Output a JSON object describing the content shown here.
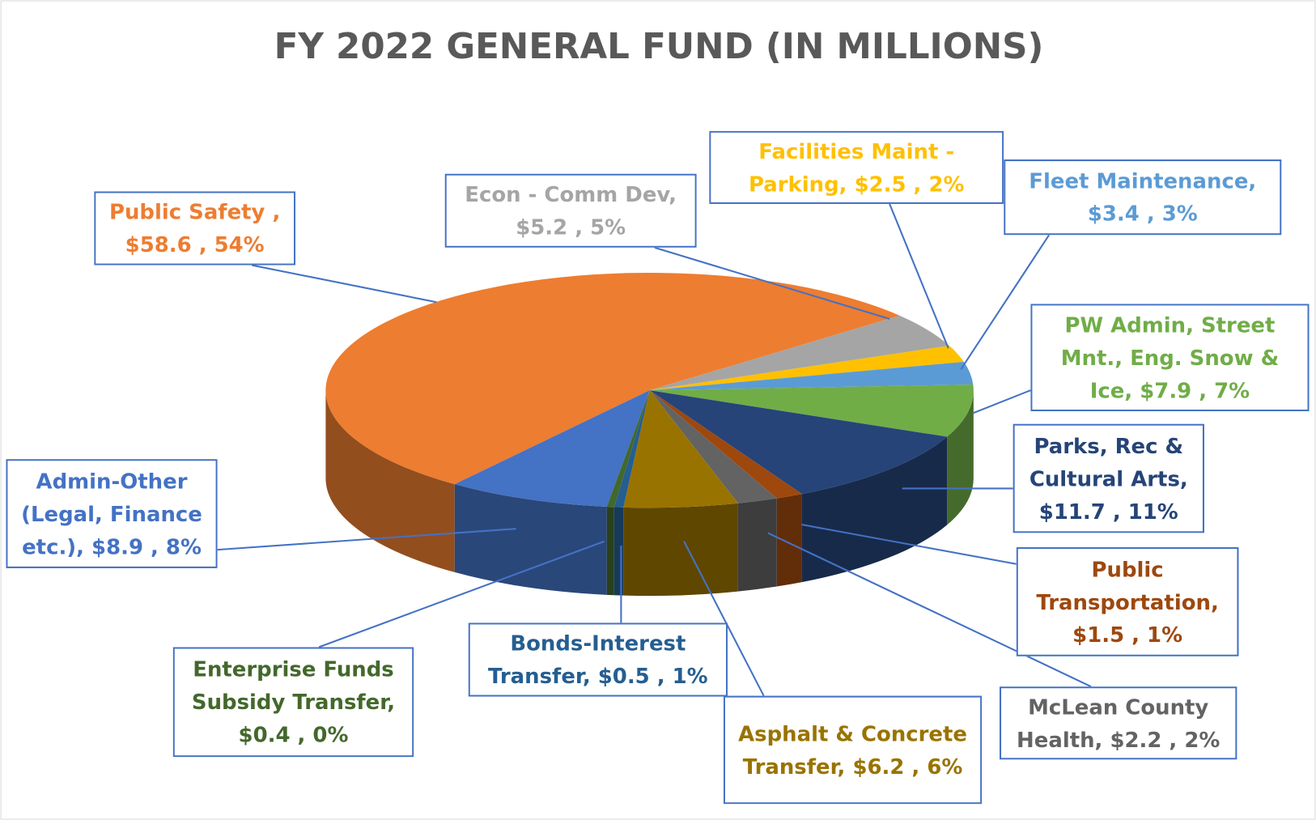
{
  "chart_data": {
    "type": "pie3d",
    "title": "FY 2022 GENERAL FUND (IN MILLIONS)",
    "categories": [
      "Public Safety ,",
      "Econ - Comm Dev,",
      "Facilities Maint - Parking,",
      "Fleet Maintenance,",
      "PW Admin, Street Mnt., Eng. Snow & Ice,",
      "Parks, Rec & Cultural Arts,",
      "Public Transportation,",
      "McLean County Health,",
      "Asphalt & Concrete Transfer,",
      "Bonds-Interest Transfer,",
      "Enterprise Funds Subsidy Transfer,",
      "Admin-Other (Legal, Finance etc.),"
    ],
    "values": [
      58.6,
      5.2,
      2.5,
      3.4,
      7.9,
      11.7,
      1.5,
      2.2,
      6.2,
      0.5,
      0.4,
      8.9
    ],
    "value_labels": [
      "$58.6 ,",
      "$5.2 ,",
      "$2.5 ,",
      "$3.4 ,",
      "$7.9 ,",
      "$11.7 ,",
      "$1.5 ,",
      "$2.2 ,",
      "$6.2 ,",
      "$0.5 ,",
      "$0.4 ,",
      "$8.9 ,"
    ],
    "percents": [
      54,
      5,
      2,
      3,
      7,
      11,
      1,
      2,
      6,
      1,
      0,
      8
    ],
    "percent_labels": [
      "54%",
      "5%",
      "2%",
      "3%",
      "7%",
      "11%",
      "1%",
      "2%",
      "6%",
      "1%",
      "0%",
      "8%"
    ],
    "colors": [
      "#ed7d31",
      "#a5a5a5",
      "#ffc000",
      "#5b9bd5",
      "#70ad47",
      "#264478",
      "#9e480e",
      "#636363",
      "#997300",
      "#255e91",
      "#43682b",
      "#4472c4"
    ],
    "label_colors": [
      "#ed7d31",
      "#a5a5a5",
      "#ffc000",
      "#5b9bd5",
      "#70ad47",
      "#264478",
      "#9e480e",
      "#636363",
      "#997300",
      "#255e91",
      "#43682b",
      "#4472c4"
    ]
  }
}
